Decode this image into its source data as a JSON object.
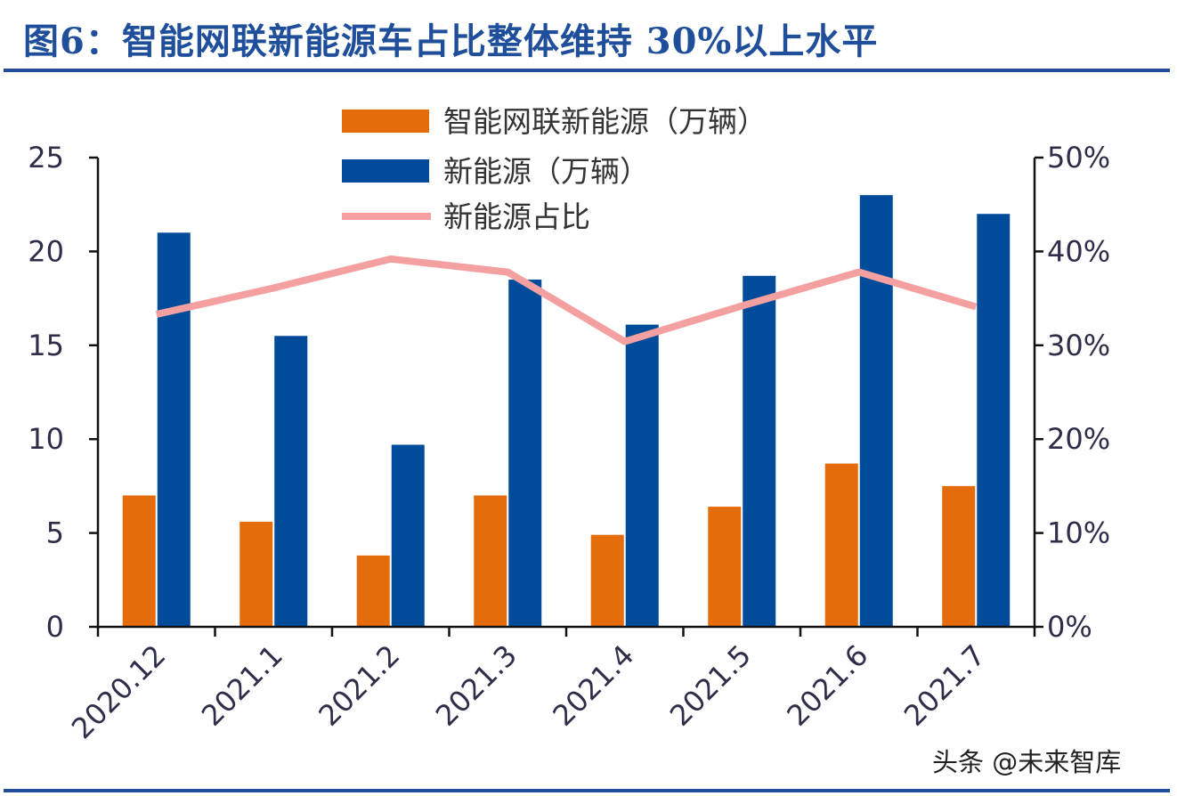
{
  "header": {
    "title": "图6：智能网联新能源车占比整体维持 30%以上水平"
  },
  "watermark": "头条 @未来智库",
  "chart_data": {
    "type": "bar",
    "categories": [
      "2020.12",
      "2021.1",
      "2021.2",
      "2021.3",
      "2021.4",
      "2021.5",
      "2021.6",
      "2021.7"
    ],
    "series": [
      {
        "name": "智能网联新能源（万辆）",
        "type": "bar",
        "axis": "left",
        "color": "#e46c0a",
        "values": [
          7.0,
          5.6,
          3.8,
          7.0,
          4.9,
          6.4,
          8.7,
          7.5
        ]
      },
      {
        "name": "新能源（万辆）",
        "type": "bar",
        "axis": "left",
        "color": "#004c9a",
        "values": [
          21.0,
          15.5,
          9.7,
          18.5,
          16.1,
          18.7,
          23.0,
          22.0
        ]
      },
      {
        "name": "新能源占比",
        "type": "line",
        "axis": "right",
        "color": "#f4a0a0",
        "values": [
          33.3,
          36.1,
          39.2,
          37.8,
          30.4,
          34.2,
          37.8,
          34.1
        ]
      }
    ],
    "left_axis": {
      "ylim": [
        0,
        25
      ],
      "ticks": [
        "0",
        "5",
        "10",
        "15",
        "20",
        "25"
      ]
    },
    "right_axis": {
      "ylim": [
        0,
        50
      ],
      "ticks": [
        "0%",
        "10%",
        "20%",
        "30%",
        "40%",
        "50%"
      ]
    },
    "legend_position": "top-center",
    "grid": false
  }
}
